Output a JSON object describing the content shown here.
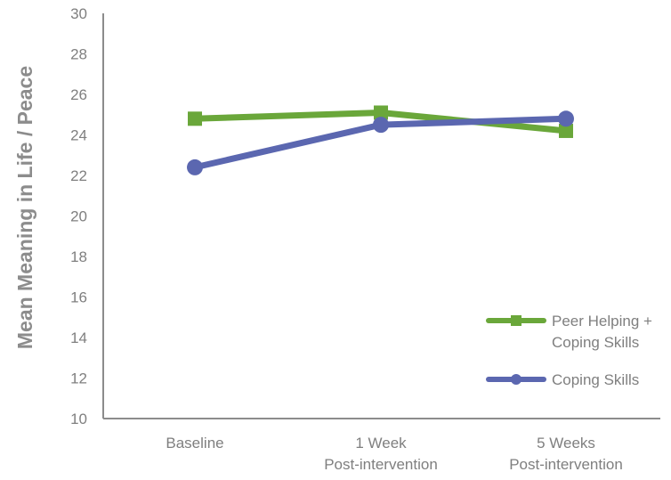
{
  "chart_data": {
    "type": "line",
    "title": "",
    "xlabel": "",
    "ylabel": "Mean Meaning in Life / Peace",
    "categories": [
      [
        "Baseline"
      ],
      [
        "1 Week",
        "Post-intervention"
      ],
      [
        "5 Weeks",
        "Post-intervention"
      ]
    ],
    "ylim": [
      10,
      30
    ],
    "yticks": [
      10,
      12,
      14,
      16,
      18,
      20,
      22,
      24,
      26,
      28,
      30
    ],
    "grid": false,
    "legend_position": "bottom-right",
    "series": [
      {
        "name_lines": [
          "Peer Helping +",
          "Coping Skills"
        ],
        "values": [
          24.8,
          25.1,
          24.2
        ],
        "color": "#6aa73a",
        "marker": "square"
      },
      {
        "name_lines": [
          "Coping Skills"
        ],
        "values": [
          22.4,
          24.5,
          24.8
        ],
        "color": "#5b67b0",
        "marker": "circle"
      }
    ],
    "axis_color": "#8c8c8c"
  }
}
